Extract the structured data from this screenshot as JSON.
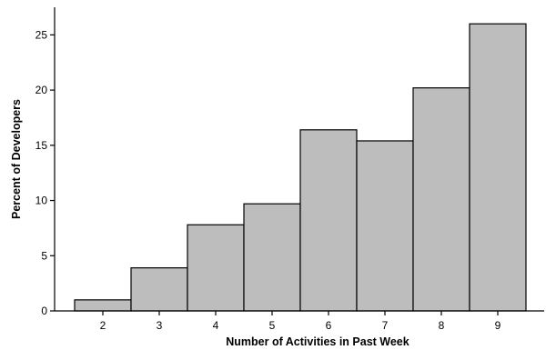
{
  "chart_data": {
    "type": "bar",
    "title": "",
    "xlabel": "Number of Activities in Past Week",
    "ylabel": "Percent of Developers",
    "categories": [
      "2",
      "3",
      "4",
      "5",
      "6",
      "7",
      "8",
      "9"
    ],
    "values": [
      1.0,
      3.9,
      7.8,
      9.7,
      16.4,
      15.4,
      20.2,
      26.0
    ],
    "ylim": [
      0,
      27.5
    ],
    "yticks": [
      0,
      5,
      10,
      15,
      20,
      25
    ],
    "grid": false,
    "legend": "none",
    "bar_color": "#bdbdbd",
    "edge_color": "#000000"
  }
}
